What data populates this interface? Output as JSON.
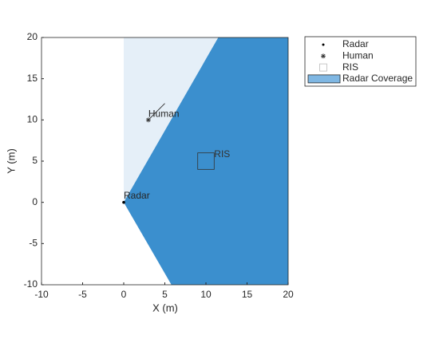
{
  "chart_data": {
    "type": "scatter",
    "xlabel": "X (m)",
    "ylabel": "Y (m)",
    "xlim": [
      -10,
      20
    ],
    "ylim": [
      -10,
      20
    ],
    "xticks": [
      -10,
      -5,
      0,
      5,
      10,
      15,
      20
    ],
    "yticks": [
      -10,
      -5,
      0,
      5,
      10,
      15,
      20
    ],
    "legend": "outside-top-right",
    "series": [
      {
        "name": "Radar",
        "marker": "point",
        "color": "#000000",
        "x": [
          0
        ],
        "y": [
          0
        ]
      },
      {
        "name": "Human",
        "marker": "asterisk",
        "color": "#333333",
        "x": [
          3
        ],
        "y": [
          10
        ],
        "heading": {
          "x": [
            3,
            5
          ],
          "y": [
            10,
            12
          ]
        }
      },
      {
        "name": "RIS",
        "marker": "square",
        "color": "#333333",
        "x": [
          10
        ],
        "y": [
          5
        ],
        "size": 2
      },
      {
        "name": "Radar Coverage",
        "marker": "area",
        "color": "#7fb7e3",
        "areas": [
          {
            "x": [
              0,
              0,
              20,
              20
            ],
            "y": [
              0,
              20,
              20,
              0
            ],
            "color": "#e5eff8"
          },
          {
            "x": [
              0,
              11.5,
              20,
              20,
              5.8
            ],
            "y": [
              0,
              20,
              20,
              -10,
              -10
            ],
            "color": "#3b8fce"
          }
        ]
      }
    ]
  }
}
